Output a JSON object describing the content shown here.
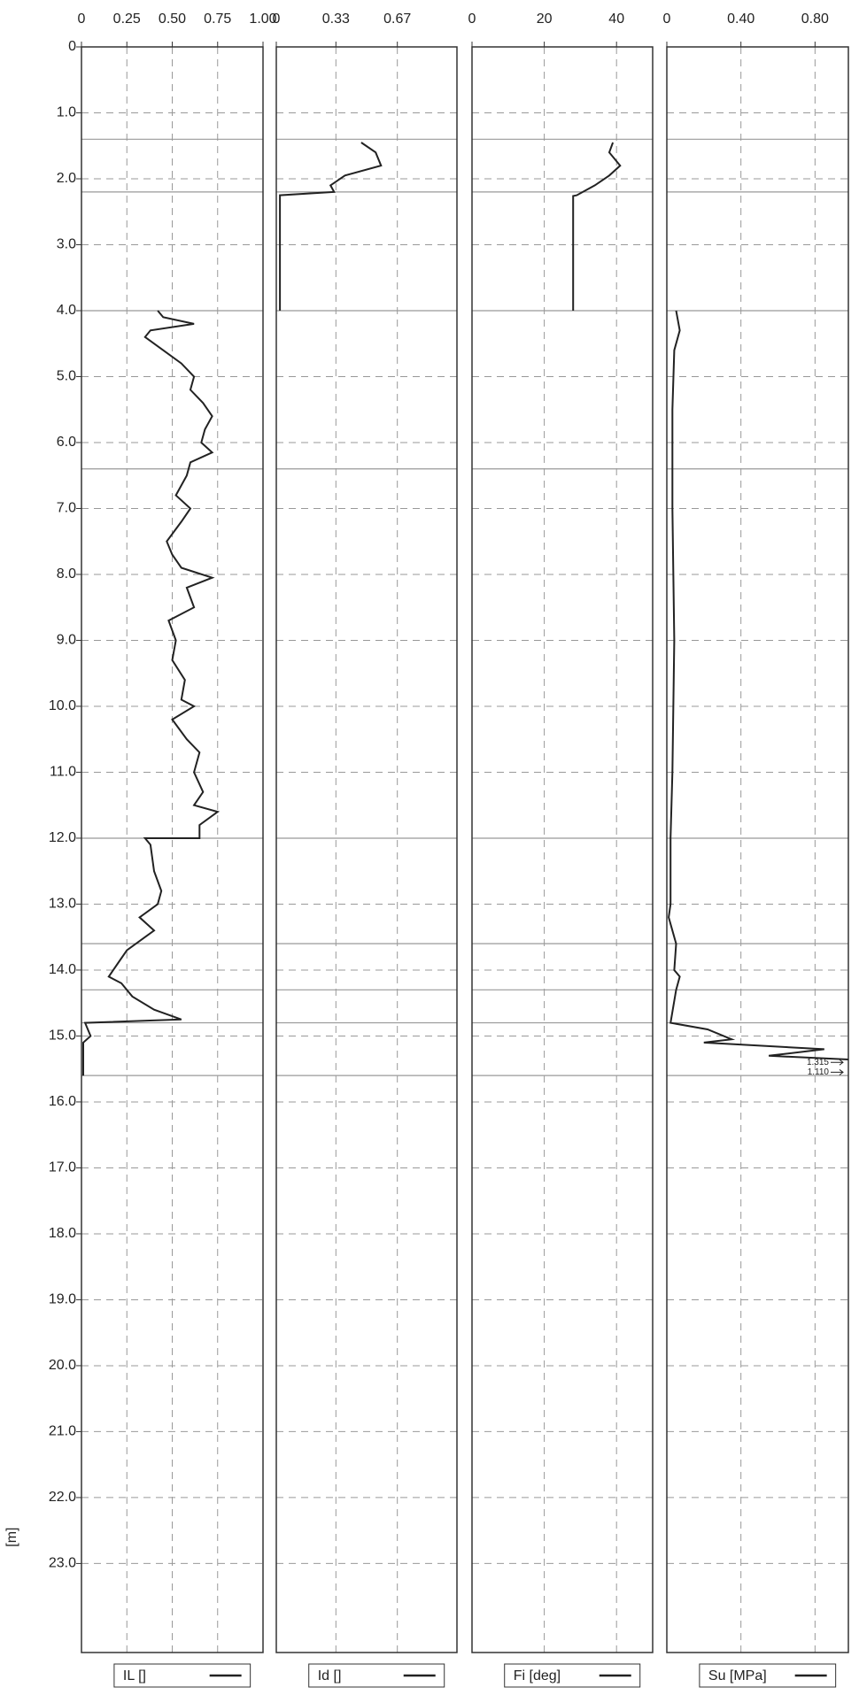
{
  "chart_data": {
    "type": "line",
    "ylabel": "[m]",
    "ylim": [
      0,
      24.35
    ],
    "yticks": [
      0,
      {
        "value": 1,
        "label": "1.0"
      },
      {
        "value": 2,
        "label": "2.0"
      },
      {
        "value": 3,
        "label": "3.0"
      },
      {
        "value": 4,
        "label": "4.0"
      },
      {
        "value": 5,
        "label": "5.0"
      },
      {
        "value": 6,
        "label": "6.0"
      },
      {
        "value": 7,
        "label": "7.0"
      },
      {
        "value": 8,
        "label": "8.0"
      },
      {
        "value": 9,
        "label": "9.0"
      },
      {
        "value": 10,
        "label": "10.0"
      },
      {
        "value": 11,
        "label": "11.0"
      },
      {
        "value": 12,
        "label": "12.0"
      },
      {
        "value": 13,
        "label": "13.0"
      },
      {
        "value": 14,
        "label": "14.0"
      },
      {
        "value": 15,
        "label": "15.0"
      },
      {
        "value": 16,
        "label": "16.0"
      },
      {
        "value": 17,
        "label": "17.0"
      },
      {
        "value": 18,
        "label": "18.0"
      },
      {
        "value": 19,
        "label": "19.0"
      },
      {
        "value": 20,
        "label": "20.0"
      },
      {
        "value": 21,
        "label": "21.0"
      },
      {
        "value": 22,
        "label": "22.0"
      },
      {
        "value": 23,
        "label": "23.0"
      }
    ],
    "grid": true,
    "layer_boundaries": [
      1.4,
      2.2,
      4.0,
      6.4,
      12.0,
      13.6,
      14.3,
      14.8,
      15.6
    ],
    "panels": [
      {
        "xlim": [
          0,
          1
        ],
        "xticks": [
          0,
          0.25,
          {
            "value": 0.5,
            "label": "0.50"
          },
          0.75,
          {
            "value": 1,
            "label": "1.00"
          }
        ],
        "series": [
          {
            "name": "IL []",
            "color": "#222222",
            "depth": [
              4.0,
              4.1,
              4.2,
              4.3,
              4.4,
              4.6,
              4.8,
              5.0,
              5.2,
              5.4,
              5.6,
              5.8,
              6.0,
              6.15,
              6.3,
              6.5,
              6.8,
              7.0,
              7.2,
              7.5,
              7.7,
              7.9,
              8.05,
              8.2,
              8.5,
              8.7,
              9.0,
              9.3,
              9.6,
              9.9,
              10.0,
              10.2,
              10.5,
              10.7,
              11.0,
              11.3,
              11.5,
              11.6,
              11.8,
              12.0,
              12.0,
              12.1,
              12.5,
              12.8,
              13.0,
              13.2,
              13.4,
              13.5,
              13.7,
              13.9,
              14.1,
              14.2,
              14.4,
              14.6,
              14.7,
              14.75,
              14.8,
              15.0,
              15.1,
              15.6
            ],
            "values": [
              0.42,
              0.45,
              0.62,
              0.38,
              0.35,
              0.45,
              0.55,
              0.62,
              0.6,
              0.67,
              0.72,
              0.68,
              0.66,
              0.72,
              0.6,
              0.58,
              0.52,
              0.6,
              0.55,
              0.47,
              0.5,
              0.55,
              0.72,
              0.58,
              0.62,
              0.48,
              0.52,
              0.5,
              0.57,
              0.55,
              0.62,
              0.5,
              0.58,
              0.65,
              0.62,
              0.67,
              0.62,
              0.75,
              0.65,
              0.65,
              0.35,
              0.38,
              0.4,
              0.44,
              0.42,
              0.32,
              0.4,
              0.35,
              0.25,
              0.2,
              0.15,
              0.22,
              0.28,
              0.4,
              0.5,
              0.55,
              0.02,
              0.05,
              0.01,
              0.01
            ]
          }
        ]
      },
      {
        "xlim": [
          0,
          1
        ],
        "xticks": [
          0,
          0.33,
          0.67
        ],
        "series": [
          {
            "name": "Id []",
            "color": "#222222",
            "depth": [
              1.45,
              1.6,
              1.8,
              1.95,
              2.1,
              2.2,
              2.25,
              4.0
            ],
            "values": [
              0.47,
              0.55,
              0.58,
              0.38,
              0.3,
              0.32,
              0.02,
              0.02
            ]
          }
        ]
      },
      {
        "xlim": [
          0,
          50
        ],
        "xticks": [
          0,
          20,
          40
        ],
        "series": [
          {
            "name": "Fi [deg]",
            "color": "#222222",
            "depth": [
              1.45,
              1.6,
              1.8,
              1.95,
              2.1,
              2.25,
              2.26,
              4.0
            ],
            "values": [
              39,
              38,
              41,
              38,
              34,
              29,
              28,
              28
            ]
          }
        ]
      },
      {
        "xlim": [
          0,
          0.98
        ],
        "xticks": [
          0,
          {
            "value": 0.4,
            "label": "0.40"
          },
          {
            "value": 0.8,
            "label": "0.80"
          }
        ],
        "series": [
          {
            "name": "Su [MPa]",
            "color": "#222222",
            "depth": [
              4.0,
              4.3,
              4.6,
              5.5,
              7.0,
              9.0,
              11.0,
              12.0,
              13.0,
              13.2,
              13.6,
              14.0,
              14.1,
              14.3,
              14.8,
              14.9,
              15.05,
              15.1,
              15.2,
              15.3,
              15.4,
              15.55
            ],
            "values": [
              0.05,
              0.07,
              0.04,
              0.03,
              0.03,
              0.04,
              0.03,
              0.02,
              0.02,
              0.01,
              0.05,
              0.04,
              0.07,
              0.05,
              0.02,
              0.22,
              0.35,
              0.2,
              0.85,
              0.55,
              1.315,
              1.11
            ]
          }
        ],
        "annotations": [
          {
            "text": "1.315",
            "depth": 15.4
          },
          {
            "text": "1.110",
            "depth": 15.55
          }
        ]
      }
    ]
  }
}
